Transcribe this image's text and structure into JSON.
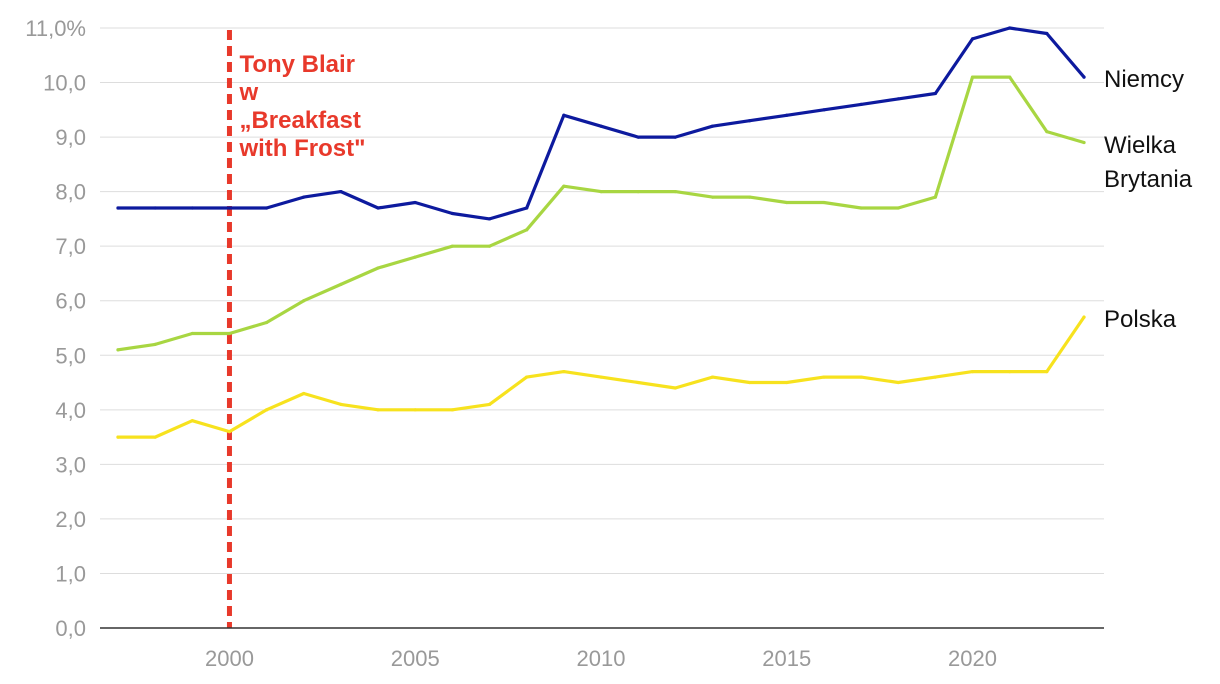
{
  "chart_data": {
    "type": "line",
    "title": "",
    "xlabel": "",
    "ylabel": "",
    "xlim": [
      1997,
      2023
    ],
    "ylim": [
      0,
      11
    ],
    "grid": true,
    "legend": "direct labels at right end of lines",
    "x": [
      1997,
      1998,
      1999,
      2000,
      2001,
      2002,
      2003,
      2004,
      2005,
      2006,
      2007,
      2008,
      2009,
      2010,
      2011,
      2012,
      2013,
      2014,
      2015,
      2016,
      2017,
      2018,
      2019,
      2020,
      2021,
      2022,
      2023
    ],
    "x_tick_values": [
      2000,
      2005,
      2010,
      2015,
      2020
    ],
    "x_tick_labels": [
      "2000",
      "2005",
      "2010",
      "2015",
      "2020"
    ],
    "y_tick_values": [
      0,
      1,
      2,
      3,
      4,
      5,
      6,
      7,
      8,
      9,
      10,
      11
    ],
    "y_tick_labels": [
      "0,0",
      "1,0",
      "2,0",
      "3,0",
      "4,0",
      "5,0",
      "6,0",
      "7,0",
      "8,0",
      "9,0",
      "10,0",
      "11,0%"
    ],
    "series": [
      {
        "name": "Niemcy",
        "label_lines": [
          "Niemcy"
        ],
        "color": "#0d1a9e",
        "values": [
          7.7,
          7.7,
          7.7,
          7.7,
          7.7,
          7.9,
          8.0,
          7.7,
          7.8,
          7.6,
          7.5,
          7.7,
          9.4,
          9.2,
          9.0,
          9.0,
          9.2,
          9.3,
          9.4,
          9.5,
          9.6,
          9.7,
          9.8,
          10.8,
          11.0,
          10.9,
          10.1
        ]
      },
      {
        "name": "Wielka Brytania",
        "label_lines": [
          "Wielka",
          "Brytania"
        ],
        "color": "#a8d642",
        "values": [
          5.1,
          5.2,
          5.4,
          5.4,
          5.6,
          6.0,
          6.3,
          6.6,
          6.8,
          7.0,
          7.0,
          7.3,
          8.1,
          8.0,
          8.0,
          8.0,
          7.9,
          7.9,
          7.8,
          7.8,
          7.7,
          7.7,
          7.9,
          10.1,
          10.1,
          9.1,
          8.9
        ]
      },
      {
        "name": "Polska",
        "label_lines": [
          "Polska"
        ],
        "color": "#f7e21e",
        "values": [
          3.5,
          3.5,
          3.8,
          3.6,
          4.0,
          4.3,
          4.1,
          4.0,
          4.0,
          4.0,
          4.1,
          4.6,
          4.7,
          4.6,
          4.5,
          4.4,
          4.6,
          4.5,
          4.5,
          4.6,
          4.6,
          4.5,
          4.6,
          4.7,
          4.7,
          4.7,
          5.7
        ]
      }
    ],
    "annotations": [
      {
        "x": 2000,
        "type": "vertical-dashed-line",
        "color": "#e8392b",
        "text_lines": [
          "Tony Blair",
          "w",
          "„Breakfast",
          "with Frost\""
        ]
      }
    ],
    "colors": {
      "grid": "#dddddd",
      "axis": "#333333",
      "tick_text": "#999999",
      "series_label_text": "#111111",
      "annotation": "#e8392b"
    }
  }
}
